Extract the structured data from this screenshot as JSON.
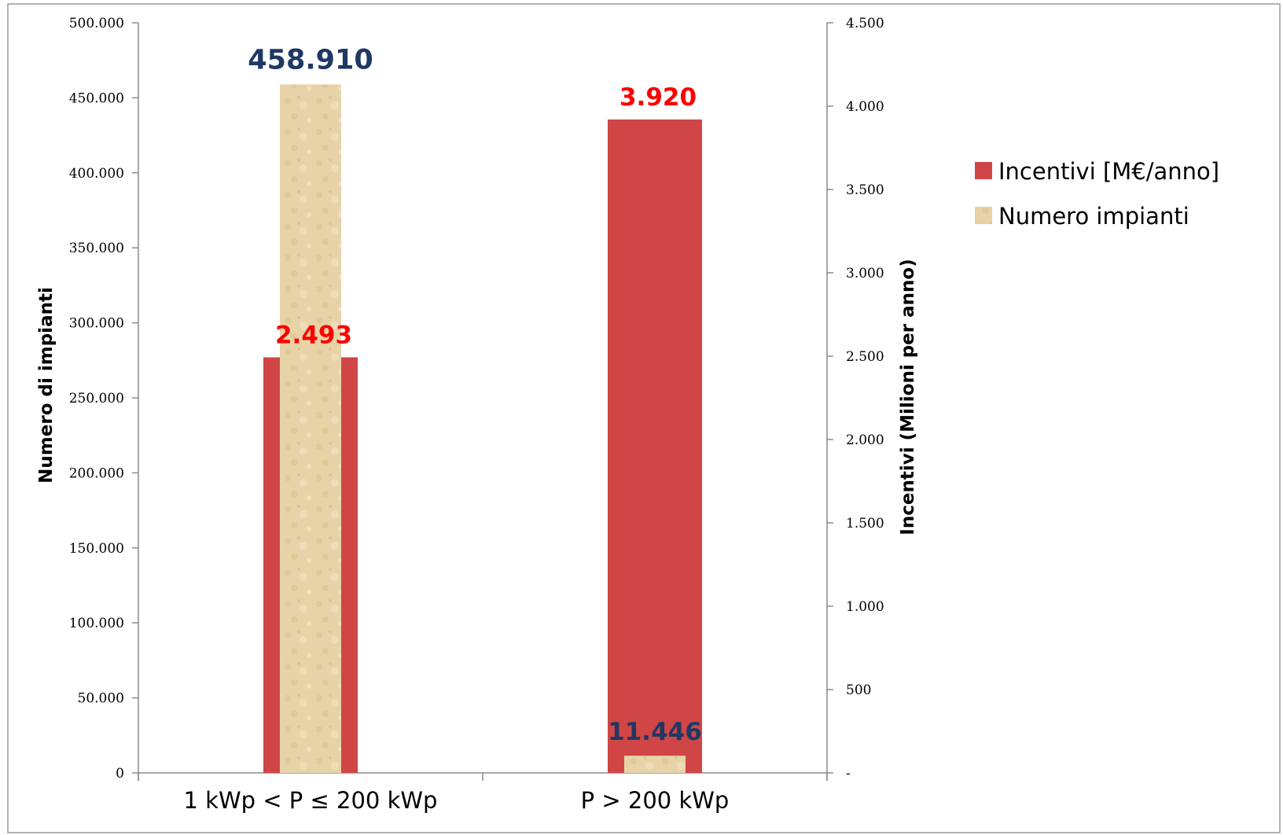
{
  "chart_data": {
    "type": "bar",
    "categories": [
      "1 kWp < P ≤ 200 kWp",
      "P > 200 kWp"
    ],
    "series": [
      {
        "name": "Incentivi  [M€/anno]",
        "axis": "right",
        "color": "#d04646",
        "values": [
          2493,
          3920
        ],
        "value_labels": [
          "2.493",
          "3.920"
        ],
        "label_color": "#ff0000"
      },
      {
        "name": "Numero impianti",
        "axis": "left",
        "color": "#e8d3a8",
        "values": [
          458910,
          11446
        ],
        "value_labels": [
          "458.910",
          "11.446"
        ],
        "label_color": "#1f3864"
      }
    ],
    "ylabel": "Numero di impianti",
    "y2label": "Incentivi (Milioni per anno)",
    "ylim": [
      0,
      500000
    ],
    "y2lim": [
      0,
      4500
    ],
    "yticks": [
      "0",
      "50.000",
      "100.000",
      "150.000",
      "200.000",
      "250.000",
      "300.000",
      "350.000",
      "400.000",
      "450.000",
      "500.000"
    ],
    "y2ticks": [
      "-",
      "500",
      "1.000",
      "1.500",
      "2.000",
      "2.500",
      "3.000",
      "3.500",
      "4.000",
      "4.500"
    ],
    "grid": false,
    "legend": "right"
  }
}
